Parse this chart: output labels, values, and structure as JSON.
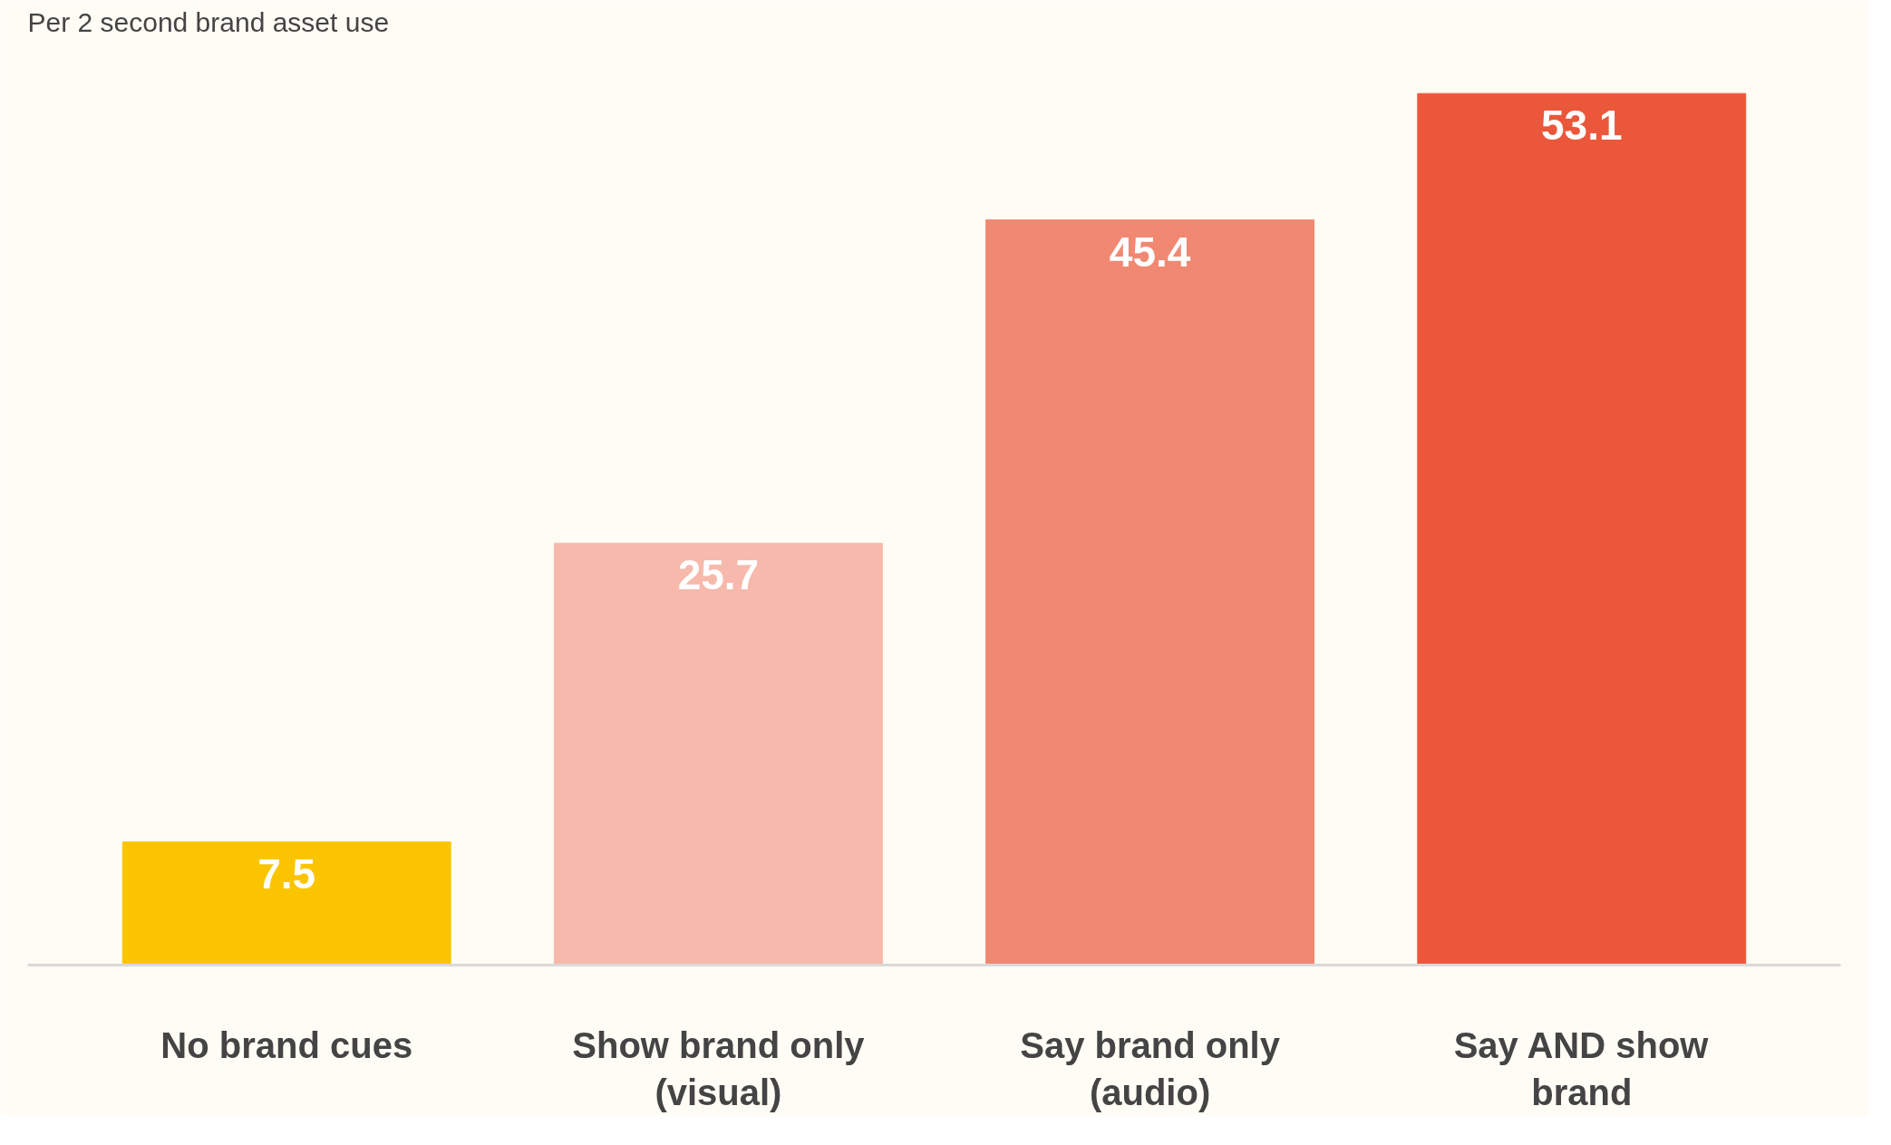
{
  "chart_data": {
    "type": "bar",
    "subtitle": "Per 2 second brand asset use",
    "categories": [
      "No brand cues",
      "Show brand only (visual)",
      "Say brand only (audio)",
      "Say AND show brand"
    ],
    "values": [
      7.5,
      25.7,
      45.4,
      53.1
    ],
    "colors": [
      "#fac500",
      "#f7b9ab",
      "#f08872",
      "#eb573b"
    ],
    "data_labels": true,
    "grid": false
  }
}
